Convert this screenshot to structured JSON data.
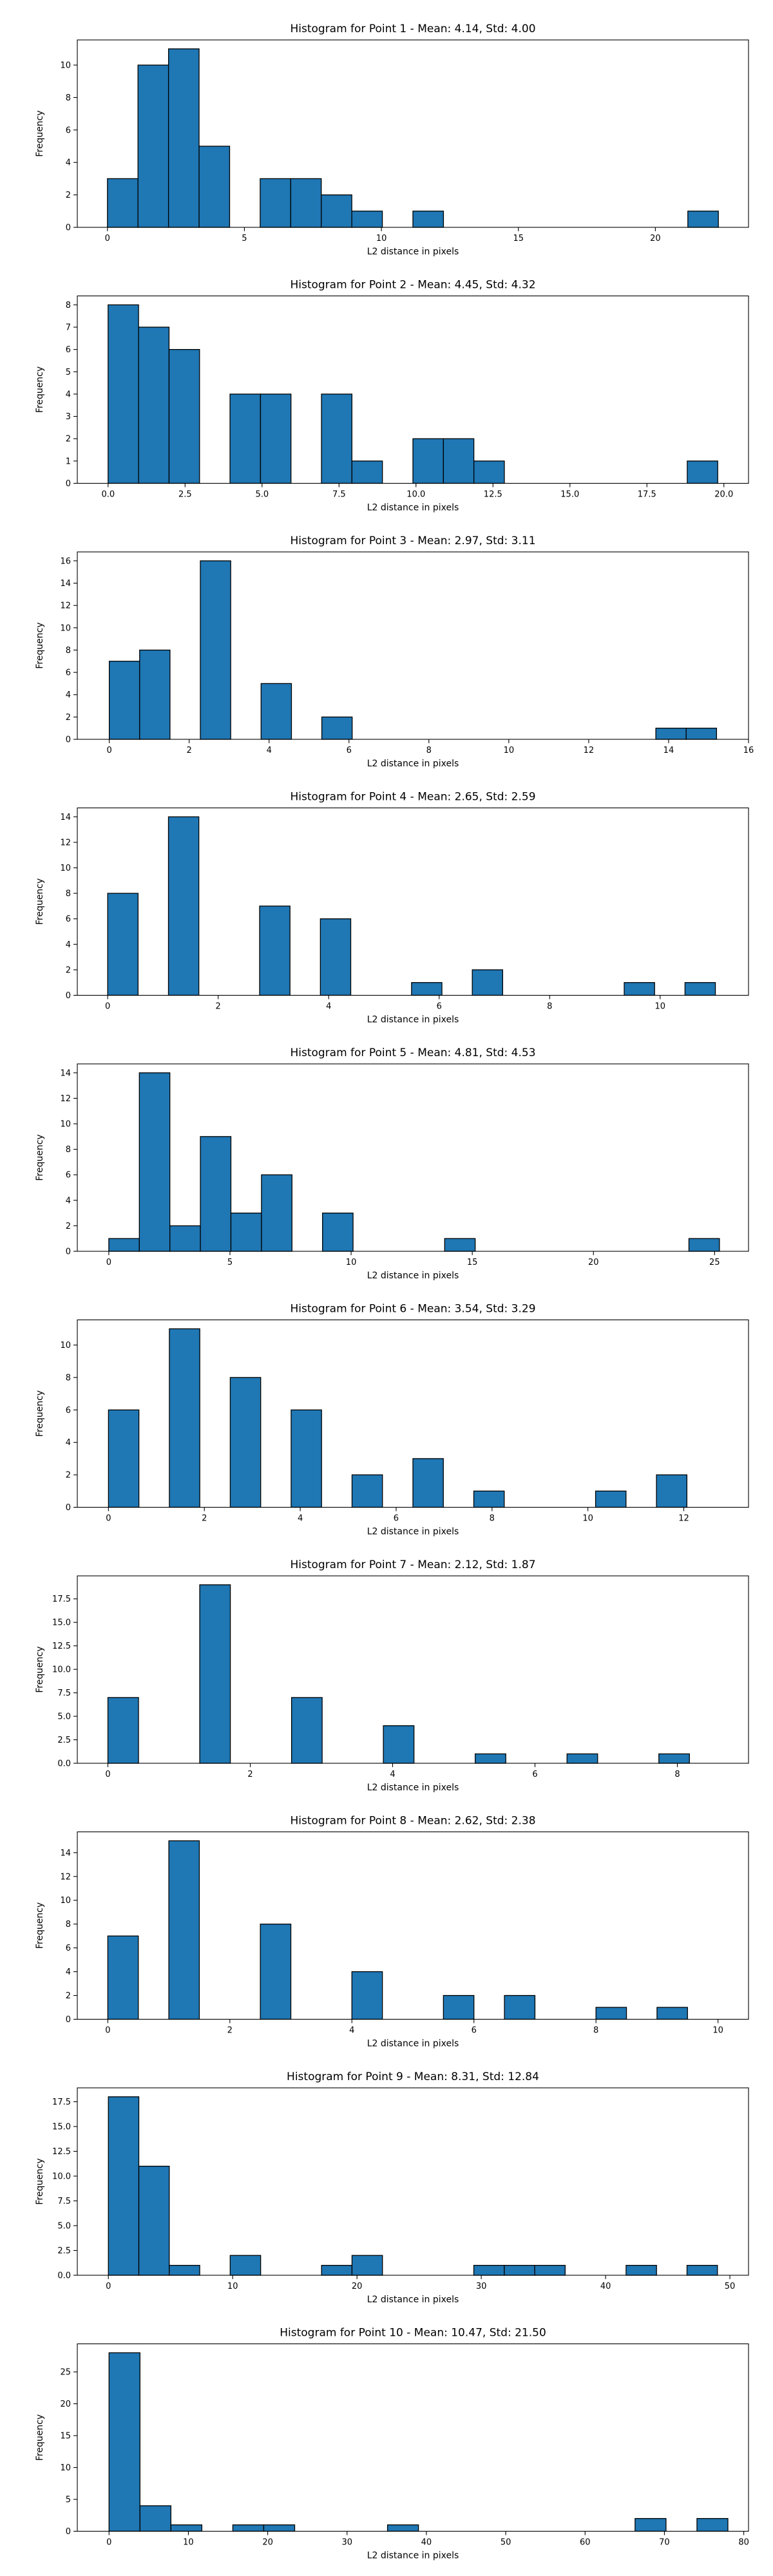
{
  "chart_data": [
    {
      "type": "bar",
      "title": "Histogram for Point 1 - Mean: 4.14, Std: 4.00",
      "xlabel": "L2 distance in pixels",
      "ylabel": "Frequency",
      "xlim": [
        -1.1,
        23.4
      ],
      "ylim": [
        0,
        11.55
      ],
      "xticks": [
        0,
        5,
        10,
        15,
        20
      ],
      "xtick_labels": [
        "0",
        "5",
        "10",
        "15",
        "20"
      ],
      "yticks": [
        0,
        2,
        4,
        6,
        8,
        10
      ],
      "ytick_labels": [
        "0",
        "2",
        "4",
        "6",
        "8",
        "10"
      ],
      "bin_edges": [
        0.0,
        1.115,
        2.23,
        3.345,
        4.46,
        5.575,
        6.69,
        7.805,
        8.92,
        10.035,
        11.15,
        12.265,
        13.38,
        14.495,
        15.61,
        16.725,
        17.84,
        18.955,
        20.07,
        21.185,
        22.3
      ],
      "values": [
        3,
        10,
        11,
        5,
        0,
        3,
        3,
        2,
        1,
        0,
        1,
        0,
        0,
        0,
        0,
        0,
        0,
        0,
        0,
        1
      ]
    },
    {
      "type": "bar",
      "title": "Histogram for Point 2 - Mean: 4.45, Std: 4.32",
      "xlabel": "L2 distance in pixels",
      "ylabel": "Frequency",
      "xlim": [
        -1.0,
        20.8
      ],
      "ylim": [
        0,
        8.4
      ],
      "xticks": [
        0,
        2.5,
        5,
        7.5,
        10,
        12.5,
        15,
        17.5,
        20
      ],
      "xtick_labels": [
        "0.0",
        "2.5",
        "5.0",
        "7.5",
        "10.0",
        "12.5",
        "15.0",
        "17.5",
        "20.0"
      ],
      "yticks": [
        0,
        1,
        2,
        3,
        4,
        5,
        6,
        7,
        8
      ],
      "ytick_labels": [
        "0",
        "1",
        "2",
        "3",
        "4",
        "5",
        "6",
        "7",
        "8"
      ],
      "bin_edges": [
        0.0,
        0.99,
        1.98,
        2.97,
        3.96,
        4.95,
        5.94,
        6.93,
        7.92,
        8.91,
        9.9,
        10.89,
        11.88,
        12.87,
        13.86,
        14.85,
        15.84,
        16.83,
        17.82,
        18.81,
        19.8
      ],
      "values": [
        8,
        7,
        6,
        0,
        4,
        4,
        0,
        4,
        1,
        0,
        2,
        2,
        1,
        0,
        0,
        0,
        0,
        0,
        0,
        1
      ]
    },
    {
      "type": "bar",
      "title": "Histogram for Point 3 - Mean: 2.97, Std: 3.11",
      "xlabel": "L2 distance in pixels",
      "ylabel": "Frequency",
      "xlim": [
        -0.8,
        16.0
      ],
      "ylim": [
        0,
        16.8
      ],
      "xticks": [
        0,
        2,
        4,
        6,
        8,
        10,
        12,
        14,
        16
      ],
      "xtick_labels": [
        "0",
        "2",
        "4",
        "6",
        "8",
        "10",
        "12",
        "14",
        "16"
      ],
      "yticks": [
        0,
        2,
        4,
        6,
        8,
        10,
        12,
        14,
        16
      ],
      "ytick_labels": [
        "0",
        "2",
        "4",
        "6",
        "8",
        "10",
        "12",
        "14",
        "16"
      ],
      "bin_edges": [
        0.0,
        0.76,
        1.52,
        2.28,
        3.04,
        3.8,
        4.56,
        5.32,
        6.08,
        6.84,
        7.6,
        8.36,
        9.12,
        9.88,
        10.64,
        11.4,
        12.16,
        12.92,
        13.68,
        14.44,
        15.2
      ],
      "values": [
        7,
        8,
        0,
        16,
        0,
        5,
        0,
        2,
        0,
        0,
        0,
        0,
        0,
        0,
        0,
        0,
        0,
        0,
        1,
        1
      ]
    },
    {
      "type": "bar",
      "title": "Histogram for Point 4 - Mean: 2.65, Std: 2.59",
      "xlabel": "L2 distance in pixels",
      "ylabel": "Frequency",
      "xlim": [
        -0.55,
        11.6
      ],
      "ylim": [
        0,
        14.7
      ],
      "xticks": [
        0,
        2,
        4,
        6,
        8,
        10
      ],
      "xtick_labels": [
        "0",
        "2",
        "4",
        "6",
        "8",
        "10"
      ],
      "yticks": [
        0,
        2,
        4,
        6,
        8,
        10,
        12,
        14
      ],
      "ytick_labels": [
        "0",
        "2",
        "4",
        "6",
        "8",
        "10",
        "12",
        "14"
      ],
      "bin_edges": [
        0.0,
        0.55,
        1.1,
        1.65,
        2.2,
        2.75,
        3.3,
        3.85,
        4.4,
        4.95,
        5.5,
        6.05,
        6.6,
        7.15,
        7.7,
        8.25,
        8.8,
        9.35,
        9.9,
        10.45,
        11.0
      ],
      "values": [
        8,
        0,
        14,
        0,
        0,
        7,
        0,
        6,
        0,
        0,
        1,
        0,
        2,
        0,
        0,
        0,
        0,
        1,
        0,
        1
      ]
    },
    {
      "type": "bar",
      "title": "Histogram for Point 5 - Mean: 4.81, Std: 4.53",
      "xlabel": "L2 distance in pixels",
      "ylabel": "Frequency",
      "xlim": [
        -1.3,
        26.4
      ],
      "ylim": [
        0,
        14.7
      ],
      "xticks": [
        0,
        5,
        10,
        15,
        20,
        25
      ],
      "xtick_labels": [
        "0",
        "5",
        "10",
        "15",
        "20",
        "25"
      ],
      "yticks": [
        0,
        2,
        4,
        6,
        8,
        10,
        12,
        14
      ],
      "ytick_labels": [
        "0",
        "2",
        "4",
        "6",
        "8",
        "10",
        "12",
        "14"
      ],
      "bin_edges": [
        0.0,
        1.26,
        2.52,
        3.78,
        5.04,
        6.3,
        7.56,
        8.82,
        10.08,
        11.34,
        12.6,
        13.86,
        15.12,
        16.38,
        17.64,
        18.9,
        20.16,
        21.42,
        22.68,
        23.94,
        25.2
      ],
      "values": [
        1,
        14,
        2,
        9,
        3,
        6,
        0,
        3,
        0,
        0,
        0,
        1,
        0,
        0,
        0,
        0,
        0,
        0,
        0,
        1
      ]
    },
    {
      "type": "bar",
      "title": "Histogram for Point 6 - Mean: 3.54, Std: 3.29",
      "xlabel": "L2 distance in pixels",
      "ylabel": "Frequency",
      "xlim": [
        -0.65,
        13.35
      ],
      "ylim": [
        0,
        11.55
      ],
      "xticks": [
        0,
        2,
        4,
        6,
        8,
        10,
        12
      ],
      "xtick_labels": [
        "0",
        "2",
        "4",
        "6",
        "8",
        "10",
        "12"
      ],
      "yticks": [
        0,
        2,
        4,
        6,
        8,
        10
      ],
      "ytick_labels": [
        "0",
        "2",
        "4",
        "6",
        "8",
        "10"
      ],
      "bin_edges": [
        0.0,
        0.635,
        1.27,
        1.905,
        2.54,
        3.175,
        3.81,
        4.445,
        5.08,
        5.715,
        6.35,
        6.985,
        7.62,
        8.255,
        8.89,
        9.525,
        10.16,
        10.795,
        11.43,
        12.065,
        12.7
      ],
      "values": [
        6,
        0,
        11,
        0,
        8,
        0,
        6,
        0,
        2,
        0,
        3,
        0,
        1,
        0,
        0,
        0,
        1,
        0,
        2,
        0
      ]
    },
    {
      "type": "bar",
      "title": "Histogram for Point 7 - Mean: 2.12, Std: 1.87",
      "xlabel": "L2 distance in pixels",
      "ylabel": "Frequency",
      "xlim": [
        -0.43,
        9.0
      ],
      "ylim": [
        0,
        19.95
      ],
      "xticks": [
        0,
        2,
        4,
        6,
        8
      ],
      "xtick_labels": [
        "0",
        "2",
        "4",
        "6",
        "8"
      ],
      "yticks": [
        0,
        2.5,
        5,
        7.5,
        10,
        12.5,
        15,
        17.5
      ],
      "ytick_labels": [
        "0.0",
        "2.5",
        "5.0",
        "7.5",
        "10.0",
        "12.5",
        "15.0",
        "17.5"
      ],
      "bin_edges": [
        0.0,
        0.43,
        0.86,
        1.29,
        1.72,
        2.15,
        2.58,
        3.01,
        3.44,
        3.87,
        4.3,
        4.73,
        5.16,
        5.59,
        6.02,
        6.45,
        6.88,
        7.31,
        7.74,
        8.17,
        8.6
      ],
      "values": [
        7,
        0,
        0,
        19,
        0,
        0,
        7,
        0,
        0,
        4,
        0,
        0,
        1,
        0,
        0,
        1,
        0,
        0,
        1,
        0
      ]
    },
    {
      "type": "bar",
      "title": "Histogram for Point 8 - Mean: 2.62, Std: 2.38",
      "xlabel": "L2 distance in pixels",
      "ylabel": "Frequency",
      "xlim": [
        -0.5,
        10.5
      ],
      "ylim": [
        0,
        15.75
      ],
      "xticks": [
        0,
        2,
        4,
        6,
        8,
        10
      ],
      "xtick_labels": [
        "0",
        "2",
        "4",
        "6",
        "8",
        "10"
      ],
      "yticks": [
        0,
        2,
        4,
        6,
        8,
        10,
        12,
        14
      ],
      "ytick_labels": [
        "0",
        "2",
        "4",
        "6",
        "8",
        "10",
        "12",
        "14"
      ],
      "bin_edges": [
        0.0,
        0.5,
        1.0,
        1.5,
        2.0,
        2.5,
        3.0,
        3.5,
        4.0,
        4.5,
        5.0,
        5.5,
        6.0,
        6.5,
        7.0,
        7.5,
        8.0,
        8.5,
        9.0,
        9.5,
        10.0
      ],
      "values": [
        7,
        0,
        15,
        0,
        0,
        8,
        0,
        0,
        4,
        0,
        0,
        2,
        0,
        2,
        0,
        0,
        1,
        0,
        1,
        0
      ]
    },
    {
      "type": "bar",
      "title": "Histogram for Point 9 - Mean: 8.31, Std: 12.84",
      "xlabel": "L2 distance in pixels",
      "ylabel": "Frequency",
      "xlim": [
        -2.5,
        51.5
      ],
      "ylim": [
        0,
        18.9
      ],
      "xticks": [
        0,
        10,
        20,
        30,
        40,
        50
      ],
      "xtick_labels": [
        "0",
        "10",
        "20",
        "30",
        "40",
        "50"
      ],
      "yticks": [
        0,
        2.5,
        5,
        7.5,
        10,
        12.5,
        15,
        17.5
      ],
      "ytick_labels": [
        "0.0",
        "2.5",
        "5.0",
        "7.5",
        "10.0",
        "12.5",
        "15.0",
        "17.5"
      ],
      "bin_edges": [
        0.0,
        2.45,
        4.9,
        7.35,
        9.8,
        12.25,
        14.7,
        17.15,
        19.6,
        22.05,
        24.5,
        26.95,
        29.4,
        31.85,
        34.3,
        36.75,
        39.2,
        41.65,
        44.1,
        46.55,
        49.0
      ],
      "values": [
        18,
        11,
        1,
        0,
        2,
        0,
        0,
        1,
        2,
        0,
        0,
        0,
        1,
        1,
        1,
        0,
        0,
        1,
        0,
        1
      ]
    },
    {
      "type": "bar",
      "title": "Histogram for Point 10 - Mean: 10.47, Std: 21.50",
      "xlabel": "L2 distance in pixels",
      "ylabel": "Frequency",
      "xlim": [
        -4.0,
        80.6
      ],
      "ylim": [
        0,
        29.4
      ],
      "xticks": [
        0,
        10,
        20,
        30,
        40,
        50,
        60,
        70,
        80
      ],
      "xtick_labels": [
        "0",
        "10",
        "20",
        "30",
        "40",
        "50",
        "60",
        "70",
        "80"
      ],
      "yticks": [
        0,
        5,
        10,
        15,
        20,
        25
      ],
      "ytick_labels": [
        "0",
        "5",
        "10",
        "15",
        "20",
        "25"
      ],
      "bin_edges": [
        0.0,
        3.9,
        7.8,
        11.7,
        15.6,
        19.5,
        23.4,
        27.3,
        31.2,
        35.1,
        39.0,
        42.9,
        46.8,
        50.7,
        54.6,
        58.5,
        62.4,
        66.3,
        70.2,
        74.1,
        78.0
      ],
      "values": [
        28,
        4,
        1,
        0,
        1,
        1,
        0,
        0,
        0,
        1,
        0,
        0,
        0,
        0,
        0,
        0,
        0,
        2,
        0,
        2
      ]
    }
  ]
}
